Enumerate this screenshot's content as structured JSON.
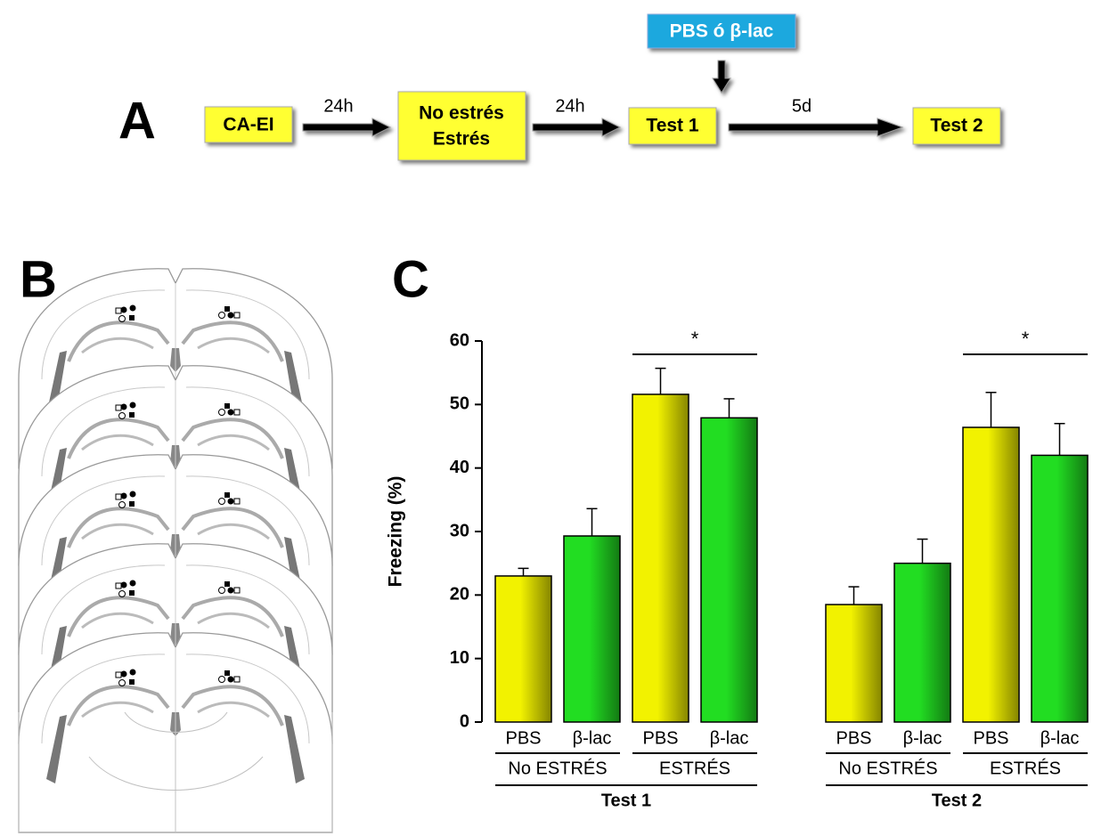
{
  "panel_a": {
    "label": "A",
    "boxes": [
      "CA-EI",
      "No estrés",
      "Estrés",
      "Test 1",
      "Test 2"
    ],
    "treatment": "PBS ó β-lac",
    "intervals": [
      "24h",
      "24h",
      "5d"
    ]
  },
  "panel_b": {
    "label": "B"
  },
  "chart_data": {
    "type": "bar",
    "label": "C",
    "ylabel": "Freezing (%)",
    "categories": [
      "PBS",
      "β-lac",
      "PBS",
      "β-lac",
      "PBS",
      "β-lac",
      "PBS",
      "β-lac"
    ],
    "values": [
      23,
      29.3,
      51.6,
      47.9,
      18.5,
      25,
      46.4,
      42
    ],
    "errors": [
      1.2,
      4.3,
      4.1,
      3,
      2.8,
      3.8,
      5.5,
      5
    ],
    "colors": [
      "#f2f200",
      "#22dd22",
      "#f2f200",
      "#22dd22",
      "#f2f200",
      "#22dd22",
      "#f2f200",
      "#22dd22"
    ],
    "groups": [
      "No ESTRÉS",
      "ESTRÉS",
      "No ESTRÉS",
      "ESTRÉS"
    ],
    "tests": [
      "Test 1",
      "Test 2"
    ],
    "significance": [
      "*",
      "*"
    ],
    "ylim": [
      0,
      60
    ],
    "yticks": [
      0,
      10,
      20,
      30,
      40,
      50,
      60
    ]
  }
}
